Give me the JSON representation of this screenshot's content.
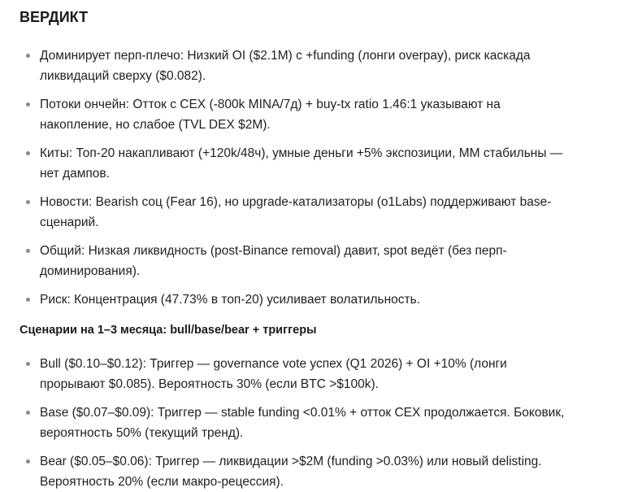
{
  "verdict": {
    "title": "ВЕРДИКТ",
    "items": [
      {
        "lines": [
          "Доминирует перп-плечо: Низкий OI ($2.1M) с +funding (лонги overpay), риск каскада",
          "ликвидаций сверху ($0.082)."
        ]
      },
      {
        "lines": [
          "Потоки ончейн: Отток с CEX (-800k MINA/7д) + buy-tx ratio 1.46:1 указывают на",
          "накопление, но слабое (TVL DEX $2M)."
        ]
      },
      {
        "lines": [
          "Киты: Топ-20 накапливают (+120k/48ч), умные деньги +5% экспозиции, MM стабильны —",
          "нет дампов."
        ]
      },
      {
        "lines": [
          "Новости: Bearish соц (Fear 16), но upgrade-катализаторы (o1Labs) поддерживают base-",
          "сценарий."
        ]
      },
      {
        "lines": [
          "Общий: Низкая ликвидность (post-Binance removal) давит, spot ведёт (без перп-",
          "доминирования)."
        ]
      },
      {
        "lines": [
          "Риск: Концентрация (47.73% в топ-20) усиливает волатильность."
        ]
      }
    ]
  },
  "scenarios": {
    "title": "Сценарии на 1–3 месяца: bull/base/bear + триггеры",
    "items": [
      {
        "lines": [
          "Bull ($0.10–$0.12): Триггер — governance vote успех (Q1 2026) + OI +10% (лонги",
          "прорывают $0.085). Вероятность 30% (если BTC >$100k)."
        ]
      },
      {
        "lines": [
          "Base ($0.07–$0.09): Триггер — stable funding <0.01% + отток CEX продолжается. Боковик,",
          "вероятность 50% (текущий тренд)."
        ]
      },
      {
        "lines": [
          "Bear ($0.05–$0.06): Триггер — ликвидации >$2M (funding >0.03%) или новый delisting.",
          "Вероятность 20% (если макро-рецессия)."
        ]
      }
    ]
  }
}
